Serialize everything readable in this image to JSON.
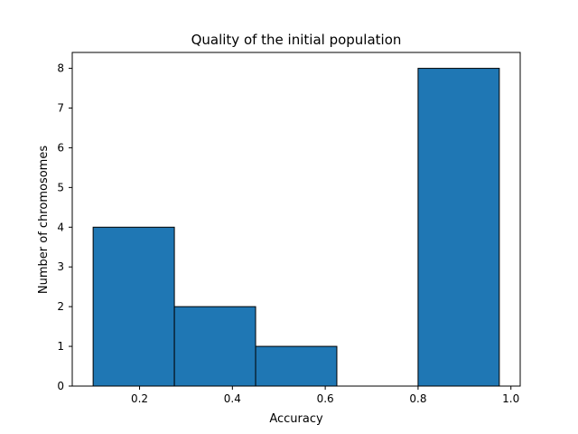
{
  "chart_data": {
    "type": "bar",
    "title": "Quality of the initial population",
    "xlabel": "Accuracy",
    "ylabel": "Number of chromosomes",
    "xlim": [
      0.055,
      1.02
    ],
    "ylim": [
      0,
      8.4
    ],
    "xticks": [
      0.2,
      0.4,
      0.6,
      0.8,
      1.0
    ],
    "xtick_labels": [
      "0.2",
      "0.4",
      "0.6",
      "0.8",
      "1.0"
    ],
    "yticks": [
      0,
      1,
      2,
      3,
      4,
      5,
      6,
      7,
      8
    ],
    "ytick_labels": [
      "0",
      "1",
      "2",
      "3",
      "4",
      "5",
      "6",
      "7",
      "8"
    ],
    "bin_edges": [
      0.1,
      0.275,
      0.45,
      0.625,
      0.8,
      0.975
    ],
    "values": [
      4,
      2,
      1,
      0,
      8
    ],
    "grid": false,
    "bar_color": "#1f77b4",
    "edge_color": "#000000"
  }
}
